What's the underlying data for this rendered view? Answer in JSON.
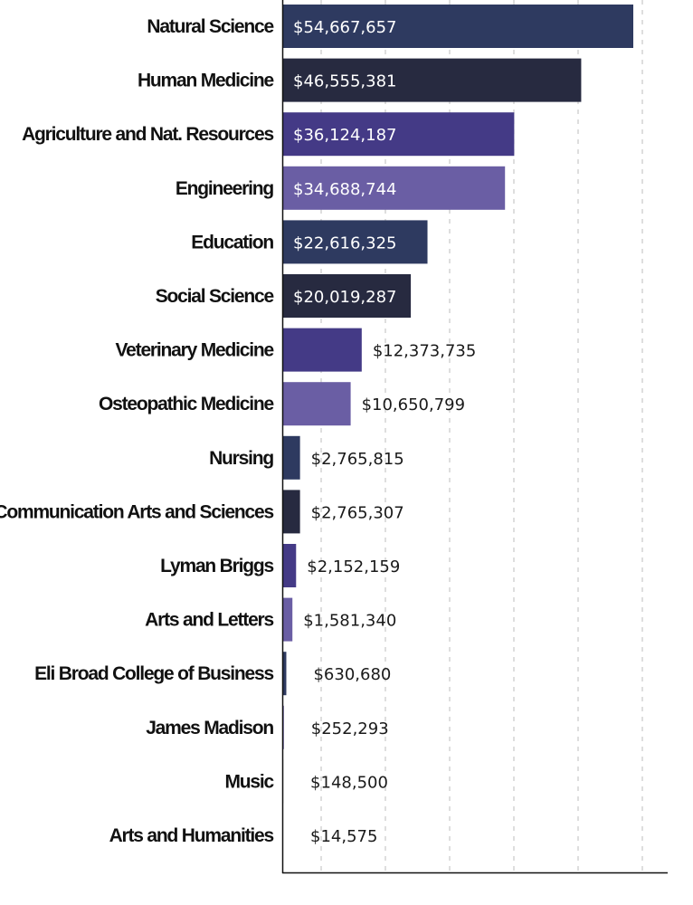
{
  "chart_data": {
    "type": "bar",
    "orientation": "horizontal",
    "title": "",
    "xlabel": "",
    "ylabel": "",
    "xlim": [
      0,
      60000000
    ],
    "grid": true,
    "categories": [
      "Natural Science",
      "Human Medicine",
      "Agriculture and Nat. Resources",
      "Engineering",
      "Education",
      "Social Science",
      "Veterinary Medicine",
      "Osteopathic Medicine",
      "Nursing",
      "Communication Arts and Sciences",
      "Lyman Briggs",
      "Arts and Letters",
      "Eli Broad College of Business",
      "James Madison",
      "Music",
      "Arts and Humanities"
    ],
    "values": [
      54667657,
      46555381,
      36124187,
      34688744,
      22616325,
      20019287,
      12373735,
      10650799,
      2765815,
      2765307,
      2152159,
      1581340,
      630680,
      252293,
      148500,
      14575
    ],
    "labels": [
      "$54,667,657",
      "$46,555,381",
      "$36,124,187",
      "$34,688,744",
      "$22,616,325",
      "$20,019,287",
      "$12,373,735",
      "$10,650,799",
      "$2,765,815",
      "$2,765,307",
      "$2,152,159",
      "$1,581,340",
      "$630,680",
      "$252,293",
      "$148,500",
      "$14,575"
    ],
    "colors": [
      "#2e3a60",
      "#272a40",
      "#443a86",
      "#6a5ea4",
      "#2e3a60",
      "#272a40",
      "#443a86",
      "#6a5ea4",
      "#2e3a60",
      "#272a40",
      "#443a86",
      "#6a5ea4",
      "#2e3a60",
      "#6a5ea4",
      "#111111",
      "#2e3a60"
    ]
  }
}
